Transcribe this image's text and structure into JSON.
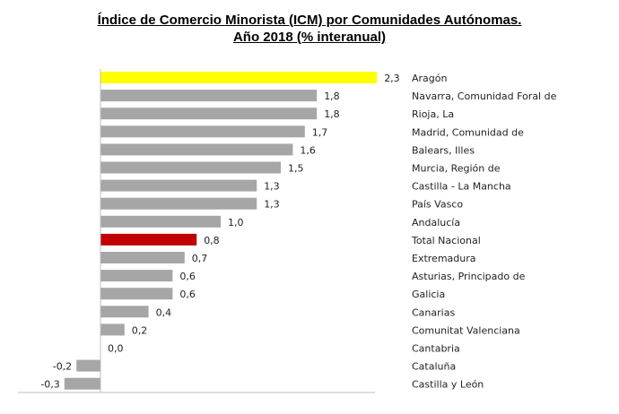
{
  "chart_data": {
    "type": "bar",
    "orientation": "horizontal",
    "title": "Índice de Comercio Minorista (ICM) por Comunidades Autónomas.",
    "subtitle": "Año 2018 (% interanual)",
    "categories": [
      "Aragón",
      "Navarra, Comunidad Foral de",
      "Rioja, La",
      "Madrid, Comunidad de",
      "Balears, Illes",
      "Murcia, Región de",
      "Castilla - La Mancha",
      "País Vasco",
      "Andalucía",
      "Total Nacional",
      "Extremadura",
      "Asturias, Principado de",
      "Galicia",
      "Canarias",
      "Comunitat Valenciana",
      "Cantabria",
      "Cataluña",
      "Castilla y León"
    ],
    "values": [
      2.3,
      1.8,
      1.8,
      1.7,
      1.6,
      1.5,
      1.3,
      1.3,
      1.0,
      0.8,
      0.7,
      0.6,
      0.6,
      0.4,
      0.2,
      0.0,
      -0.2,
      -0.3
    ],
    "data_labels": [
      "2,3",
      "1,8",
      "1,8",
      "1,7",
      "1,6",
      "1,5",
      "1,3",
      "1,3",
      "1,0",
      "0,8",
      "0,7",
      "0,6",
      "0,6",
      "0,4",
      "0,2",
      "0,0",
      "-0,2",
      "-0,3"
    ],
    "colors": {
      "default": "#a6a6a6",
      "Aragón": "#ffff00",
      "Total Nacional": "#c00000"
    },
    "xlim": [
      -0.3,
      2.3
    ],
    "grid": false,
    "legend": "none"
  }
}
